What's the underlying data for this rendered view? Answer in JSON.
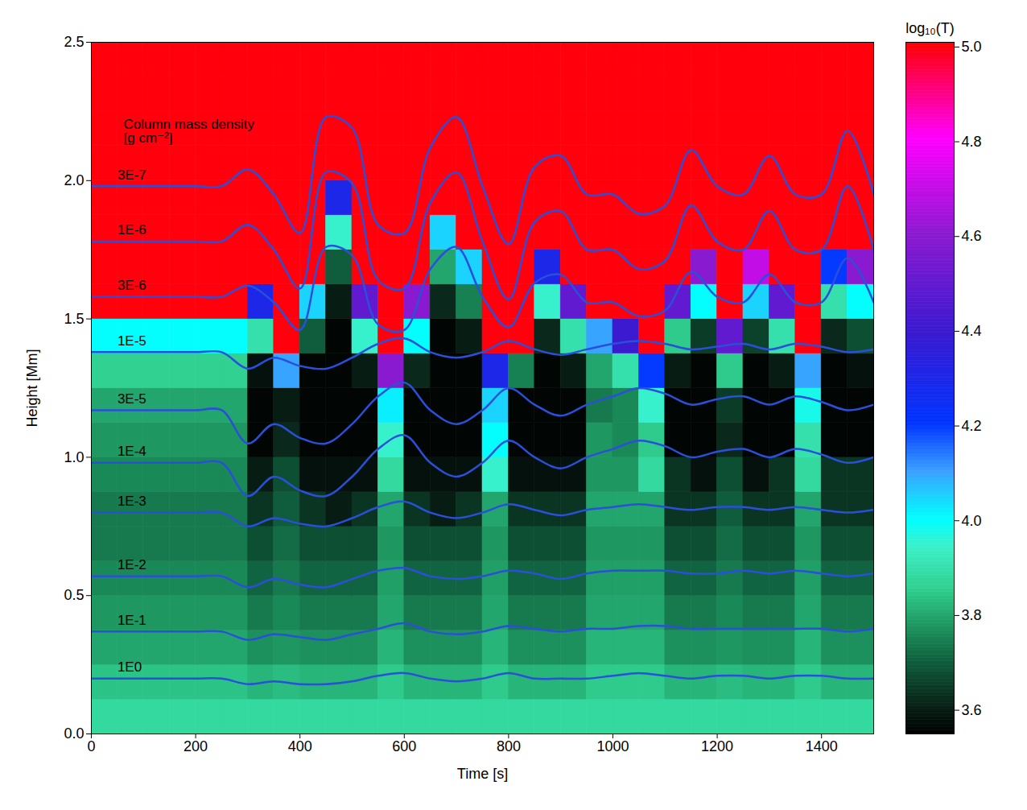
{
  "chart_data": {
    "type": "heatmap",
    "x_label": "Time [s]",
    "y_label": "Height [Mm]",
    "xlim": [
      0,
      1500
    ],
    "xticks": [
      0,
      200,
      400,
      600,
      800,
      1000,
      1200,
      1400
    ],
    "ylim": [
      0,
      2.5
    ],
    "yticks": [
      {
        "value": 0,
        "label": "0.0"
      },
      0.5,
      {
        "value": 1,
        "label": "1.0"
      },
      1.5,
      {
        "value": 2,
        "label": "2.0"
      },
      2.5
    ],
    "x_bins": [
      0,
      50,
      100,
      150,
      200,
      250,
      300,
      350,
      400,
      450,
      500,
      550,
      600,
      650,
      700,
      750,
      800,
      850,
      900,
      950,
      1000,
      1050,
      1100,
      1150,
      1200,
      1250,
      1300,
      1350,
      1400,
      1450,
      1500
    ],
    "y_bins": [
      0,
      0.125,
      0.25,
      0.375,
      0.5,
      0.625,
      0.75,
      0.875,
      1,
      1.125,
      1.25,
      1.375,
      1.5,
      1.625,
      1.75,
      1.875,
      2,
      2.125,
      2.25,
      2.375,
      2.5
    ],
    "cells": [
      [
        3.88,
        3.88,
        3.88,
        3.88,
        3.88,
        3.88,
        3.88,
        3.88,
        3.88,
        3.88,
        3.88,
        3.88,
        3.88,
        3.88,
        3.88,
        3.88,
        3.88,
        3.88,
        3.88,
        3.88,
        3.88,
        3.88,
        3.88,
        3.88,
        3.88,
        3.88,
        3.88,
        3.88,
        3.88,
        3.88
      ],
      [
        3.84,
        3.84,
        3.84,
        3.84,
        3.84,
        3.84,
        3.82,
        3.83,
        3.82,
        3.82,
        3.82,
        3.85,
        3.82,
        3.82,
        3.82,
        3.85,
        3.82,
        3.82,
        3.82,
        3.85,
        3.85,
        3.85,
        3.82,
        3.82,
        3.83,
        3.82,
        3.82,
        3.85,
        3.82,
        3.82
      ],
      [
        3.8,
        3.8,
        3.8,
        3.8,
        3.8,
        3.8,
        3.77,
        3.78,
        3.77,
        3.77,
        3.77,
        3.82,
        3.77,
        3.77,
        3.77,
        3.82,
        3.77,
        3.77,
        3.77,
        3.82,
        3.82,
        3.82,
        3.77,
        3.77,
        3.78,
        3.77,
        3.77,
        3.82,
        3.77,
        3.77
      ],
      [
        3.78,
        3.78,
        3.78,
        3.78,
        3.78,
        3.78,
        3.74,
        3.76,
        3.74,
        3.74,
        3.74,
        3.8,
        3.74,
        3.74,
        3.74,
        3.8,
        3.74,
        3.74,
        3.74,
        3.8,
        3.8,
        3.8,
        3.74,
        3.74,
        3.76,
        3.74,
        3.74,
        3.8,
        3.74,
        3.74
      ],
      [
        3.76,
        3.76,
        3.76,
        3.76,
        3.76,
        3.76,
        3.71,
        3.74,
        3.71,
        3.71,
        3.71,
        3.79,
        3.71,
        3.71,
        3.71,
        3.79,
        3.71,
        3.71,
        3.71,
        3.79,
        3.79,
        3.79,
        3.71,
        3.71,
        3.74,
        3.71,
        3.71,
        3.79,
        3.71,
        3.71
      ],
      [
        3.74,
        3.74,
        3.74,
        3.74,
        3.74,
        3.74,
        3.68,
        3.72,
        3.68,
        3.68,
        3.68,
        3.78,
        3.68,
        3.68,
        3.68,
        3.78,
        3.68,
        3.68,
        3.68,
        3.78,
        3.78,
        3.78,
        3.68,
        3.68,
        3.72,
        3.68,
        3.68,
        3.78,
        3.68,
        3.68
      ],
      [
        3.74,
        3.74,
        3.74,
        3.74,
        3.74,
        3.74,
        3.64,
        3.7,
        3.64,
        3.6,
        3.64,
        3.8,
        3.64,
        3.6,
        3.64,
        3.8,
        3.64,
        3.64,
        3.64,
        3.8,
        3.8,
        3.8,
        3.64,
        3.64,
        3.7,
        3.64,
        3.64,
        3.8,
        3.64,
        3.64
      ],
      [
        3.76,
        3.76,
        3.76,
        3.76,
        3.76,
        3.76,
        3.6,
        3.68,
        3.58,
        3.58,
        3.58,
        3.88,
        3.58,
        3.58,
        3.58,
        3.95,
        3.58,
        3.58,
        3.58,
        3.78,
        3.78,
        3.88,
        3.64,
        3.58,
        3.68,
        3.58,
        3.64,
        3.88,
        3.64,
        3.64
      ],
      [
        3.78,
        3.78,
        3.78,
        3.78,
        3.78,
        3.78,
        3.56,
        3.62,
        3.56,
        3.56,
        3.56,
        3.95,
        3.56,
        3.56,
        3.56,
        4.0,
        3.56,
        3.56,
        3.56,
        3.78,
        3.76,
        3.85,
        3.56,
        3.56,
        3.62,
        3.56,
        3.56,
        3.9,
        3.56,
        3.56
      ],
      [
        3.8,
        3.8,
        3.8,
        3.8,
        3.8,
        3.8,
        3.56,
        3.6,
        3.56,
        3.56,
        3.56,
        4.02,
        3.56,
        3.56,
        3.56,
        4.05,
        3.56,
        3.56,
        3.56,
        3.74,
        3.76,
        3.95,
        3.56,
        3.56,
        3.65,
        3.56,
        3.56,
        3.98,
        3.56,
        3.56
      ],
      [
        3.86,
        3.86,
        3.86,
        3.86,
        3.86,
        3.86,
        3.58,
        4.1,
        3.56,
        3.56,
        3.6,
        4.6,
        3.62,
        3.56,
        3.56,
        4.3,
        3.75,
        3.56,
        3.6,
        3.8,
        3.9,
        4.2,
        3.6,
        3.56,
        3.85,
        3.56,
        3.6,
        4.1,
        3.56,
        3.58
      ],
      [
        4.0,
        4.0,
        4.0,
        4.0,
        4.0,
        4.0,
        3.9,
        5.0,
        3.7,
        3.56,
        3.95,
        5.0,
        4.0,
        3.56,
        3.6,
        5.0,
        5.0,
        3.62,
        3.9,
        4.1,
        4.4,
        5.0,
        3.85,
        3.65,
        4.5,
        3.66,
        3.9,
        5.0,
        3.62,
        3.68
      ],
      [
        5.0,
        5.0,
        5.0,
        5.0,
        5.0,
        5.0,
        4.3,
        5.0,
        4.05,
        3.6,
        4.5,
        5.0,
        4.6,
        3.62,
        3.75,
        5.0,
        5.0,
        3.95,
        4.5,
        5.0,
        5.0,
        5.0,
        4.5,
        4.0,
        5.0,
        4.05,
        4.5,
        5.0,
        3.9,
        4.0
      ],
      [
        5.0,
        5.0,
        5.0,
        5.0,
        5.0,
        5.0,
        5.0,
        5.0,
        5.0,
        3.7,
        5.0,
        5.0,
        5.0,
        3.8,
        4.05,
        5.0,
        5.0,
        4.3,
        5.0,
        5.0,
        5.0,
        5.0,
        5.0,
        4.6,
        5.0,
        4.7,
        5.0,
        5.0,
        4.2,
        4.6
      ],
      [
        5.0,
        5.0,
        5.0,
        5.0,
        5.0,
        5.0,
        5.0,
        5.0,
        5.0,
        3.95,
        5.0,
        5.0,
        5.0,
        4.05,
        5.0,
        5.0,
        5.0,
        5.0,
        5.0,
        5.0,
        5.0,
        5.0,
        5.0,
        5.0,
        5.0,
        5.0,
        5.0,
        5.0,
        5.0,
        5.0
      ],
      [
        5.0,
        5.0,
        5.0,
        5.0,
        5.0,
        5.0,
        5.0,
        5.0,
        5.0,
        4.3,
        5.0,
        5.0,
        5.0,
        5.0,
        5.0,
        5.0,
        5.0,
        5.0,
        5.0,
        5.0,
        5.0,
        5.0,
        5.0,
        5.0,
        5.0,
        5.0,
        5.0,
        5.0,
        5.0,
        5.0
      ],
      [
        5.0,
        5.0,
        5.0,
        5.0,
        5.0,
        5.0,
        5.0,
        5.0,
        5.0,
        5.0,
        5.0,
        5.0,
        5.0,
        5.0,
        5.0,
        5.0,
        5.0,
        5.0,
        5.0,
        5.0,
        5.0,
        5.0,
        5.0,
        5.0,
        5.0,
        5.0,
        5.0,
        5.0,
        5.0,
        5.0
      ],
      [
        5.0,
        5.0,
        5.0,
        5.0,
        5.0,
        5.0,
        5.0,
        5.0,
        5.0,
        5.0,
        5.0,
        5.0,
        5.0,
        5.0,
        5.0,
        5.0,
        5.0,
        5.0,
        5.0,
        5.0,
        5.0,
        5.0,
        5.0,
        5.0,
        5.0,
        5.0,
        5.0,
        5.0,
        5.0,
        5.0
      ],
      [
        5.0,
        5.0,
        5.0,
        5.0,
        5.0,
        5.0,
        5.0,
        5.0,
        5.0,
        5.0,
        5.0,
        5.0,
        5.0,
        5.0,
        5.0,
        5.0,
        5.0,
        5.0,
        5.0,
        5.0,
        5.0,
        5.0,
        5.0,
        5.0,
        5.0,
        5.0,
        5.0,
        5.0,
        5.0,
        5.0
      ],
      [
        5.0,
        5.0,
        5.0,
        5.0,
        5.0,
        5.0,
        5.0,
        5.0,
        5.0,
        5.0,
        5.0,
        5.0,
        5.0,
        5.0,
        5.0,
        5.0,
        5.0,
        5.0,
        5.0,
        5.0,
        5.0,
        5.0,
        5.0,
        5.0,
        5.0,
        5.0,
        5.0,
        5.0,
        5.0,
        5.0
      ]
    ],
    "colorbar": {
      "label": "log₁₀(T)",
      "range": [
        3.55,
        5.01
      ],
      "ticks": [
        3.6,
        3.8,
        {
          "value": 4,
          "label": "4.0"
        },
        4.2,
        4.4,
        4.6,
        4.8,
        {
          "value": 5,
          "label": "5.0"
        }
      ]
    },
    "contours": {
      "title": [
        "Column mass density",
        "[g cm⁻²]"
      ],
      "color": "#2a4fd8",
      "x": [
        0,
        50,
        100,
        150,
        200,
        250,
        300,
        350,
        400,
        450,
        500,
        550,
        600,
        650,
        700,
        750,
        800,
        850,
        900,
        950,
        1000,
        1050,
        1100,
        1150,
        1200,
        1250,
        1300,
        1350,
        1400,
        1450,
        1500
      ],
      "lines": [
        {
          "label": "1E0",
          "values": [
            0.2,
            0.2,
            0.2,
            0.2,
            0.2,
            0.2,
            0.18,
            0.19,
            0.18,
            0.18,
            0.19,
            0.21,
            0.22,
            0.2,
            0.19,
            0.2,
            0.22,
            0.2,
            0.2,
            0.2,
            0.21,
            0.22,
            0.21,
            0.2,
            0.21,
            0.21,
            0.2,
            0.21,
            0.21,
            0.2,
            0.2
          ]
        },
        {
          "label": "1E-1",
          "values": [
            0.37,
            0.37,
            0.37,
            0.37,
            0.37,
            0.37,
            0.34,
            0.36,
            0.35,
            0.34,
            0.36,
            0.38,
            0.4,
            0.37,
            0.36,
            0.37,
            0.39,
            0.38,
            0.37,
            0.38,
            0.38,
            0.39,
            0.39,
            0.38,
            0.38,
            0.38,
            0.38,
            0.38,
            0.38,
            0.37,
            0.38
          ]
        },
        {
          "label": "1E-2",
          "values": [
            0.57,
            0.57,
            0.57,
            0.57,
            0.57,
            0.57,
            0.53,
            0.56,
            0.54,
            0.53,
            0.56,
            0.59,
            0.6,
            0.57,
            0.56,
            0.57,
            0.59,
            0.58,
            0.56,
            0.58,
            0.59,
            0.59,
            0.59,
            0.58,
            0.58,
            0.59,
            0.58,
            0.59,
            0.58,
            0.57,
            0.58
          ]
        },
        {
          "label": "1E-3",
          "values": [
            0.8,
            0.8,
            0.8,
            0.8,
            0.8,
            0.8,
            0.75,
            0.78,
            0.76,
            0.75,
            0.78,
            0.82,
            0.84,
            0.8,
            0.78,
            0.8,
            0.83,
            0.81,
            0.79,
            0.81,
            0.82,
            0.83,
            0.82,
            0.81,
            0.82,
            0.82,
            0.81,
            0.82,
            0.81,
            0.8,
            0.81
          ]
        },
        {
          "label": "1E-4",
          "values": [
            0.98,
            0.98,
            0.98,
            0.98,
            0.98,
            0.98,
            0.86,
            0.93,
            0.88,
            0.86,
            0.93,
            1.03,
            1.08,
            0.98,
            0.93,
            0.98,
            1.06,
            1.0,
            0.96,
            1.0,
            1.03,
            1.06,
            1.04,
            1.0,
            1.02,
            1.03,
            1.0,
            1.03,
            1.01,
            0.98,
            1.0
          ]
        },
        {
          "label": "3E-5",
          "values": [
            1.17,
            1.17,
            1.17,
            1.17,
            1.17,
            1.17,
            1.05,
            1.12,
            1.07,
            1.05,
            1.12,
            1.22,
            1.27,
            1.17,
            1.12,
            1.17,
            1.25,
            1.19,
            1.15,
            1.19,
            1.22,
            1.25,
            1.23,
            1.19,
            1.21,
            1.22,
            1.19,
            1.22,
            1.2,
            1.17,
            1.19
          ]
        },
        {
          "label": "1E-5",
          "values": [
            1.38,
            1.38,
            1.38,
            1.38,
            1.38,
            1.38,
            1.32,
            1.36,
            1.33,
            1.32,
            1.36,
            1.41,
            1.43,
            1.38,
            1.36,
            1.38,
            1.42,
            1.39,
            1.37,
            1.39,
            1.41,
            1.42,
            1.41,
            1.39,
            1.4,
            1.41,
            1.39,
            1.41,
            1.4,
            1.38,
            1.39
          ]
        },
        {
          "label": "3E-6",
          "values": [
            1.58,
            1.58,
            1.58,
            1.58,
            1.58,
            1.58,
            1.62,
            1.56,
            1.46,
            1.76,
            1.73,
            1.48,
            1.46,
            1.68,
            1.76,
            1.58,
            1.47,
            1.63,
            1.66,
            1.56,
            1.56,
            1.51,
            1.53,
            1.67,
            1.58,
            1.56,
            1.66,
            1.56,
            1.56,
            1.72,
            1.56
          ]
        },
        {
          "label": "1E-6",
          "values": [
            1.78,
            1.78,
            1.78,
            1.78,
            1.78,
            1.78,
            1.84,
            1.75,
            1.61,
            2.03,
            1.99,
            1.64,
            1.61,
            1.92,
            2.03,
            1.78,
            1.57,
            1.85,
            1.89,
            1.75,
            1.75,
            1.68,
            1.71,
            1.91,
            1.78,
            1.75,
            1.89,
            1.75,
            1.75,
            1.98,
            1.75
          ]
        },
        {
          "label": "3E-7",
          "values": [
            1.98,
            1.98,
            1.98,
            1.98,
            1.98,
            1.98,
            2.04,
            1.95,
            1.81,
            2.23,
            2.19,
            1.84,
            1.81,
            2.12,
            2.23,
            1.98,
            1.77,
            2.05,
            2.09,
            1.95,
            1.95,
            1.88,
            1.91,
            2.11,
            1.98,
            1.95,
            2.09,
            1.95,
            1.95,
            2.18,
            1.95
          ]
        }
      ]
    }
  }
}
